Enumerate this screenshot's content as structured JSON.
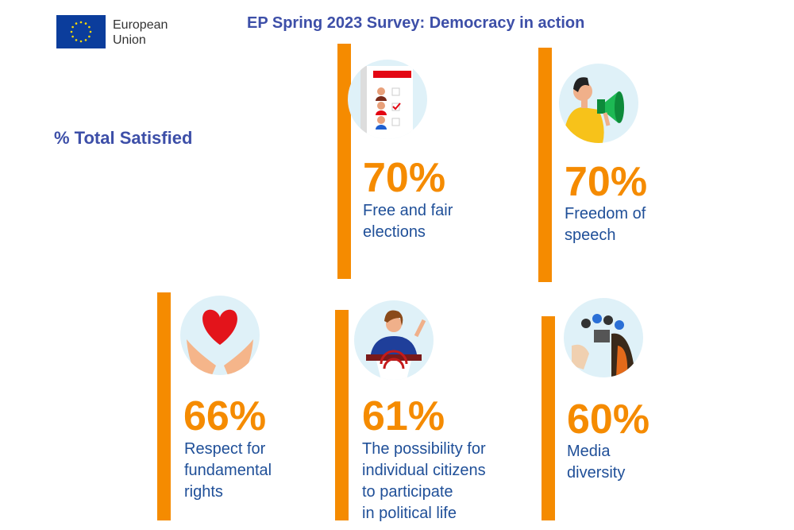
{
  "header": {
    "logo_line1": "European",
    "logo_line2": "Union",
    "title": "EP Spring 2023 Survey: Democracy in action"
  },
  "subtitle": "% Total Satisfied",
  "colors": {
    "accent": "#f58b00",
    "text": "#1f4f98",
    "title": "#3d4fa8"
  },
  "chart_data": {
    "type": "table",
    "title": "EP Spring 2023 Survey: Democracy in action",
    "measure": "% Total Satisfied",
    "items": [
      {
        "value": 70,
        "display": "70%",
        "label": [
          "Free and fair",
          "elections"
        ],
        "icon": "ballot-icon"
      },
      {
        "value": 70,
        "display": "70%",
        "label": [
          "Freedom of",
          "speech"
        ],
        "icon": "megaphone-icon"
      },
      {
        "value": 66,
        "display": "66%",
        "label": [
          "Respect for",
          "fundamental",
          "rights"
        ],
        "icon": "heart-hands-icon"
      },
      {
        "value": 61,
        "display": "61%",
        "label": [
          "The possibility for",
          "individual citizens",
          "to participate",
          "in political life"
        ],
        "icon": "speaker-podium-icon"
      },
      {
        "value": 60,
        "display": "60%",
        "label": [
          "Media",
          "diversity"
        ],
        "icon": "microphones-icon"
      }
    ]
  }
}
